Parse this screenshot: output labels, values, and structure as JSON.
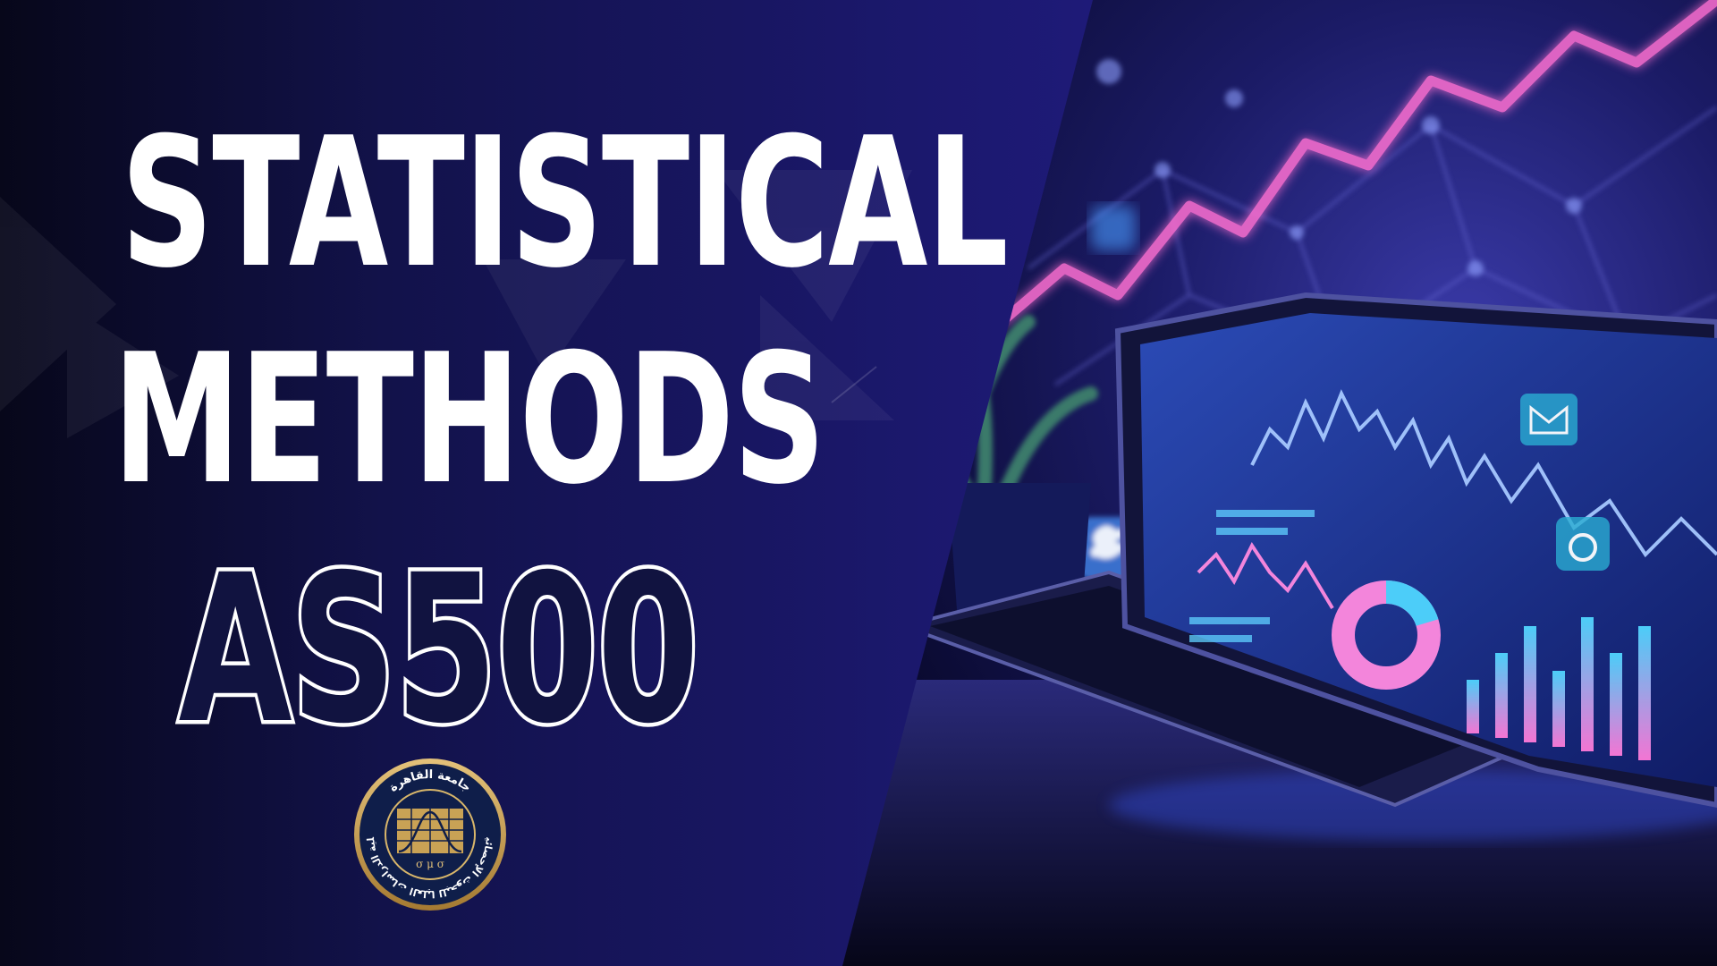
{
  "title": {
    "line1": "STATISTICAL",
    "line2": "METHODS",
    "course_code": "AS500"
  },
  "seal": {
    "arabic_text_top": "جامعة القاهرة",
    "arabic_text_side": "كلية الدراسات العليا للبحوث الإحصائية",
    "symbols": "σ μ σ"
  },
  "colors": {
    "left_bg_dark": "#08081c",
    "left_bg_blue": "#1c1870",
    "accent_pink": "#ff5fcf",
    "accent_cyan": "#4fd6ff",
    "screen_blue": "#1a2a8a",
    "seal_gold": "#c9a255",
    "seal_navy": "#0f1e4a"
  },
  "icons": [
    "twitter-icon",
    "mail-icon",
    "tiktok-icon",
    "plant-pot",
    "laptop"
  ]
}
